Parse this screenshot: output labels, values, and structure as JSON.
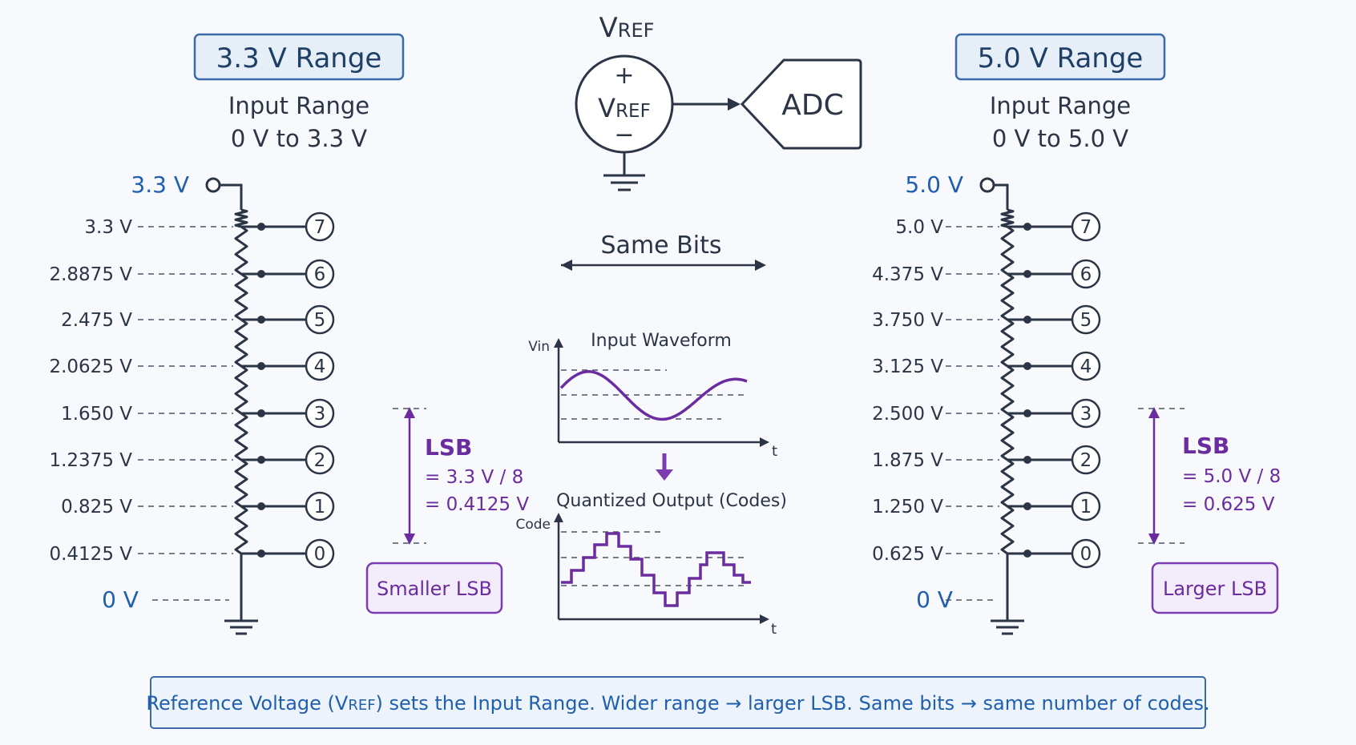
{
  "left_panel": {
    "title": "3.3 V Range",
    "range_label": "Input Range",
    "range_value": "0 V to 3.3 V",
    "top_node": "3.3 V",
    "bottom_node": "0 V",
    "taps": [
      "3.3 V",
      "2.8875 V",
      "2.475 V",
      "2.0625 V",
      "1.650 V",
      "1.2375 V",
      "0.825 V",
      "0.4125 V"
    ],
    "codes": [
      "7",
      "6",
      "5",
      "4",
      "3",
      "2",
      "1",
      "0"
    ],
    "lsb_title": "LSB",
    "lsb_formula": "= 3.3 V / 8",
    "lsb_value": "= 0.4125 V",
    "badge": "Smaller LSB"
  },
  "right_panel": {
    "title": "5.0 V Range",
    "range_label": "Input Range",
    "range_value": "0 V to 5.0 V",
    "top_node": "5.0 V",
    "bottom_node": "0 V",
    "taps": [
      "5.0 V",
      "4.375 V",
      "3.750 V",
      "3.125 V",
      "2.500 V",
      "1.875 V",
      "1.250 V",
      "0.625 V"
    ],
    "codes": [
      "7",
      "6",
      "5",
      "4",
      "3",
      "2",
      "1",
      "0"
    ],
    "lsb_title": "LSB",
    "lsb_formula": "= 5.0 V / 8",
    "lsb_value": "= 0.625 V",
    "badge": "Larger LSB"
  },
  "center": {
    "vref_main": "V",
    "vref_sub": "REF",
    "plus": "+",
    "minus": "−",
    "adc_label": "ADC",
    "same_bits": "Same Bits",
    "input_title": "Input Waveform",
    "input_axis_y": "Vin",
    "input_axis_x": "t",
    "output_title": "Quantized Output (Codes)",
    "output_axis_y": "Code",
    "output_axis_x": "t"
  },
  "footer": {
    "text_before": "Reference Voltage (V",
    "text_sub": "REF",
    "text_after": ") sets the Input Range. Wider range → larger LSB. Same bits → same number of codes."
  },
  "colors": {
    "accent_blue": "#1f5fae",
    "accent_purple": "#6a2c9e",
    "ink": "#2b3546"
  }
}
